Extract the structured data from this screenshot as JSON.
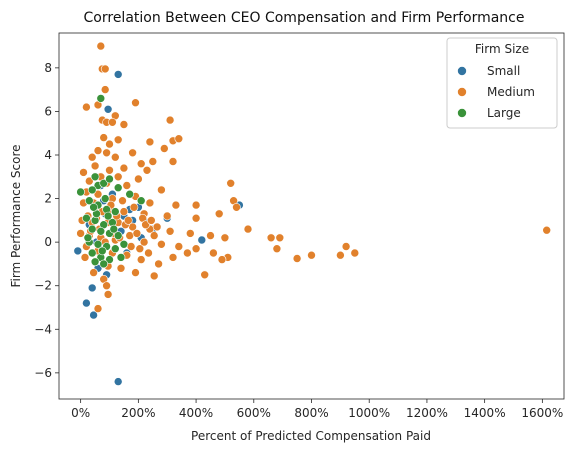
{
  "chart_data": {
    "type": "scatter",
    "title": "Correlation Between CEO Compensation and Firm Performance",
    "xlabel": "Percent of Predicted Compensation Paid",
    "ylabel": "Firm Performance Score",
    "xlim": [
      -75,
      1675
    ],
    "ylim": [
      -7.2,
      9.6
    ],
    "x_ticks": [
      0,
      200,
      400,
      600,
      800,
      1000,
      1200,
      1400,
      1600
    ],
    "x_tick_labels": [
      "0%",
      "200%",
      "400%",
      "600%",
      "800%",
      "1000%",
      "1200%",
      "1400%",
      "1600%"
    ],
    "y_ticks": [
      -6,
      -4,
      -2,
      0,
      2,
      4,
      6,
      8
    ],
    "y_tick_labels": [
      "−6",
      "−4",
      "−2",
      "0",
      "2",
      "4",
      "6",
      "8"
    ],
    "grid": false,
    "legend": {
      "title": "Firm Size",
      "placement": "top-right"
    },
    "series": [
      {
        "name": "Small",
        "color": "#3274a1",
        "points": [
          [
            130,
            7.7
          ],
          [
            95,
            6.1
          ],
          [
            130,
            -6.4
          ],
          [
            20,
            -2.8
          ],
          [
            45,
            -3.35
          ],
          [
            40,
            -2.1
          ],
          [
            -10,
            -0.4
          ],
          [
            90,
            -1.5
          ],
          [
            60,
            -1.2
          ],
          [
            120,
            0.3
          ],
          [
            150,
            1.2
          ],
          [
            180,
            1.0
          ],
          [
            200,
            1.6
          ],
          [
            300,
            1.1
          ],
          [
            420,
            0.1
          ],
          [
            550,
            1.7
          ],
          [
            250,
            0.6
          ],
          [
            110,
            2.2
          ],
          [
            70,
            2.6
          ],
          [
            160,
            -0.5
          ],
          [
            30,
            0.8
          ],
          [
            80,
            1.9
          ],
          [
            140,
            0.5
          ],
          [
            210,
            0.2
          ],
          [
            100,
            -0.8
          ],
          [
            55,
            0.0
          ],
          [
            170,
            1.5
          ],
          [
            85,
            1.3
          ],
          [
            230,
            0.9
          ],
          [
            65,
            -0.3
          ]
        ]
      },
      {
        "name": "Medium",
        "color": "#e1812c",
        "points": [
          [
            70,
            9.0
          ],
          [
            75,
            7.95
          ],
          [
            85,
            7.95
          ],
          [
            85,
            7.0
          ],
          [
            20,
            6.2
          ],
          [
            60,
            6.3
          ],
          [
            190,
            6.4
          ],
          [
            120,
            5.8
          ],
          [
            75,
            5.6
          ],
          [
            90,
            5.5
          ],
          [
            110,
            5.5
          ],
          [
            150,
            5.4
          ],
          [
            310,
            5.6
          ],
          [
            320,
            4.65
          ],
          [
            340,
            4.75
          ],
          [
            240,
            4.6
          ],
          [
            80,
            4.8
          ],
          [
            100,
            4.5
          ],
          [
            130,
            4.7
          ],
          [
            60,
            4.2
          ],
          [
            90,
            4.1
          ],
          [
            180,
            4.1
          ],
          [
            290,
            4.3
          ],
          [
            40,
            3.9
          ],
          [
            120,
            3.9
          ],
          [
            210,
            3.6
          ],
          [
            250,
            3.7
          ],
          [
            320,
            3.7
          ],
          [
            50,
            3.5
          ],
          [
            100,
            3.3
          ],
          [
            150,
            3.4
          ],
          [
            230,
            3.3
          ],
          [
            10,
            3.2
          ],
          [
            70,
            3.0
          ],
          [
            130,
            3.0
          ],
          [
            200,
            2.9
          ],
          [
            280,
            2.4
          ],
          [
            30,
            2.8
          ],
          [
            90,
            2.7
          ],
          [
            160,
            2.6
          ],
          [
            520,
            2.7
          ],
          [
            20,
            2.3
          ],
          [
            60,
            2.2
          ],
          [
            110,
            2.0
          ],
          [
            190,
            2.1
          ],
          [
            240,
            1.8
          ],
          [
            330,
            1.7
          ],
          [
            400,
            1.7
          ],
          [
            530,
            1.9
          ],
          [
            10,
            1.8
          ],
          [
            50,
            1.6
          ],
          [
            100,
            1.5
          ],
          [
            150,
            1.4
          ],
          [
            220,
            1.3
          ],
          [
            300,
            1.2
          ],
          [
            400,
            1.1
          ],
          [
            480,
            1.3
          ],
          [
            540,
            1.6
          ],
          [
            5,
            1.0
          ],
          [
            40,
            0.9
          ],
          [
            80,
            0.8
          ],
          [
            130,
            0.9
          ],
          [
            180,
            0.7
          ],
          [
            240,
            0.6
          ],
          [
            310,
            0.5
          ],
          [
            380,
            0.4
          ],
          [
            450,
            0.3
          ],
          [
            500,
            0.2
          ],
          [
            580,
            0.6
          ],
          [
            0,
            0.4
          ],
          [
            30,
            0.3
          ],
          [
            70,
            0.2
          ],
          [
            120,
            0.1
          ],
          [
            170,
            0.3
          ],
          [
            220,
            0.0
          ],
          [
            280,
            -0.1
          ],
          [
            340,
            -0.2
          ],
          [
            400,
            -0.3
          ],
          [
            460,
            -0.5
          ],
          [
            510,
            -0.7
          ],
          [
            20,
            -0.2
          ],
          [
            60,
            -0.4
          ],
          [
            110,
            -0.5
          ],
          [
            160,
            -0.6
          ],
          [
            210,
            -0.8
          ],
          [
            270,
            -1.0
          ],
          [
            320,
            -0.7
          ],
          [
            370,
            -0.5
          ],
          [
            15,
            -0.7
          ],
          [
            50,
            -0.9
          ],
          [
            95,
            -1.1
          ],
          [
            140,
            -1.2
          ],
          [
            190,
            -1.4
          ],
          [
            255,
            -1.55
          ],
          [
            45,
            -1.4
          ],
          [
            80,
            -1.7
          ],
          [
            90,
            -2.0
          ],
          [
            95,
            -2.4
          ],
          [
            60,
            -3.05
          ],
          [
            430,
            -1.5
          ],
          [
            490,
            -0.8
          ],
          [
            660,
            0.2
          ],
          [
            690,
            0.2
          ],
          [
            680,
            -0.3
          ],
          [
            750,
            -0.75
          ],
          [
            800,
            -0.6
          ],
          [
            900,
            -0.6
          ],
          [
            920,
            -0.2
          ],
          [
            950,
            -0.5
          ],
          [
            1615,
            0.55
          ],
          [
            25,
            1.2
          ],
          [
            35,
            0.5
          ],
          [
            45,
            1.8
          ],
          [
            55,
            1.1
          ],
          [
            65,
            0.6
          ],
          [
            75,
            1.4
          ],
          [
            85,
            0.0
          ],
          [
            95,
            0.9
          ],
          [
            105,
            1.7
          ],
          [
            115,
            0.4
          ],
          [
            125,
            1.2
          ],
          [
            135,
            0.2
          ],
          [
            145,
            1.9
          ],
          [
            155,
            0.8
          ],
          [
            165,
            1.0
          ],
          [
            175,
            -0.2
          ],
          [
            185,
            1.6
          ],
          [
            195,
            0.4
          ],
          [
            205,
            -0.3
          ],
          [
            215,
            1.1
          ],
          [
            225,
            0.8
          ],
          [
            235,
            -0.5
          ],
          [
            245,
            1.0
          ],
          [
            255,
            0.3
          ],
          [
            265,
            0.7
          ]
        ]
      },
      {
        "name": "Large",
        "color": "#3a923a",
        "points": [
          [
            70,
            6.6
          ],
          [
            50,
            3.0
          ],
          [
            60,
            2.6
          ],
          [
            40,
            2.4
          ],
          [
            80,
            2.7
          ],
          [
            100,
            2.9
          ],
          [
            130,
            2.5
          ],
          [
            170,
            2.2
          ],
          [
            210,
            1.9
          ],
          [
            0,
            2.3
          ],
          [
            30,
            1.9
          ],
          [
            60,
            1.7
          ],
          [
            90,
            1.5
          ],
          [
            120,
            1.4
          ],
          [
            20,
            1.1
          ],
          [
            50,
            1.0
          ],
          [
            80,
            0.8
          ],
          [
            110,
            0.9
          ],
          [
            40,
            0.6
          ],
          [
            70,
            0.5
          ],
          [
            100,
            0.4
          ],
          [
            130,
            0.3
          ],
          [
            30,
            0.0
          ],
          [
            60,
            -0.1
          ],
          [
            90,
            -0.2
          ],
          [
            120,
            -0.3
          ],
          [
            150,
            -0.1
          ],
          [
            40,
            -0.5
          ],
          [
            70,
            -0.7
          ],
          [
            100,
            -0.8
          ],
          [
            140,
            -0.7
          ],
          [
            50,
            -0.9
          ],
          [
            80,
            -1.0
          ],
          [
            25,
            0.2
          ],
          [
            55,
            1.3
          ],
          [
            85,
            2.0
          ],
          [
            115,
            0.6
          ],
          [
            75,
            -0.4
          ],
          [
            45,
            1.6
          ],
          [
            95,
            1.2
          ]
        ]
      }
    ]
  }
}
